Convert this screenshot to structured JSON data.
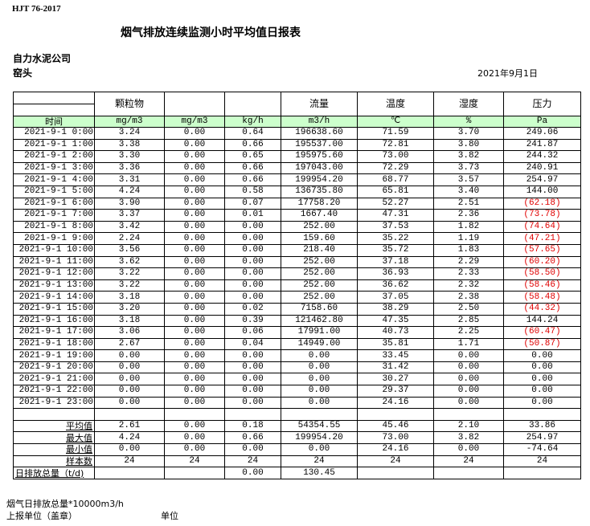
{
  "standard": "HJT  76-2017",
  "title": "烟气排放连续监测小时平均值日报表",
  "company": "自力水泥公司",
  "site": "窑头",
  "date": "2021年9月1日",
  "header": {
    "names": [
      "",
      "颗粒物",
      "",
      "",
      "流量",
      "温度",
      "湿度",
      "压力"
    ],
    "units": [
      "时间",
      "mg/m3",
      "mg/m3",
      "kg/h",
      "m3/h",
      "℃",
      "%",
      "Pa"
    ]
  },
  "rows": [
    [
      "2021-9-1 0:00",
      "3.24",
      "0.00",
      "0.64",
      "196638.60",
      "71.59",
      "3.70",
      "249.06"
    ],
    [
      "2021-9-1 1:00",
      "3.38",
      "0.00",
      "0.66",
      "195537.00",
      "72.81",
      "3.80",
      "241.87"
    ],
    [
      "2021-9-1 2:00",
      "3.30",
      "0.00",
      "0.65",
      "195975.60",
      "73.00",
      "3.82",
      "244.32"
    ],
    [
      "2021-9-1 3:00",
      "3.36",
      "0.00",
      "0.66",
      "197043.00",
      "72.29",
      "3.73",
      "240.91"
    ],
    [
      "2021-9-1 4:00",
      "3.31",
      "0.00",
      "0.66",
      "199954.20",
      "68.77",
      "3.57",
      "254.97"
    ],
    [
      "2021-9-1 5:00",
      "4.24",
      "0.00",
      "0.58",
      "136735.80",
      "65.81",
      "3.40",
      "144.00"
    ],
    [
      "2021-9-1 6:00",
      "3.90",
      "0.00",
      "0.07",
      "17758.20",
      "52.27",
      "2.51",
      "(62.18)"
    ],
    [
      "2021-9-1 7:00",
      "3.37",
      "0.00",
      "0.01",
      "1667.40",
      "47.31",
      "2.36",
      "(73.78)"
    ],
    [
      "2021-9-1 8:00",
      "3.42",
      "0.00",
      "0.00",
      "252.00",
      "37.53",
      "1.82",
      "(74.64)"
    ],
    [
      "2021-9-1 9:00",
      "2.24",
      "0.00",
      "0.00",
      "159.60",
      "35.22",
      "1.19",
      "(47.21)"
    ],
    [
      "2021-9-1 10:00",
      "3.56",
      "0.00",
      "0.00",
      "218.40",
      "35.72",
      "1.83",
      "(57.65)"
    ],
    [
      "2021-9-1 11:00",
      "3.62",
      "0.00",
      "0.00",
      "252.00",
      "37.18",
      "2.29",
      "(60.20)"
    ],
    [
      "2021-9-1 12:00",
      "3.22",
      "0.00",
      "0.00",
      "252.00",
      "36.93",
      "2.33",
      "(58.50)"
    ],
    [
      "2021-9-1 13:00",
      "3.22",
      "0.00",
      "0.00",
      "252.00",
      "36.62",
      "2.32",
      "(58.46)"
    ],
    [
      "2021-9-1 14:00",
      "3.18",
      "0.00",
      "0.00",
      "252.00",
      "37.05",
      "2.38",
      "(58.48)"
    ],
    [
      "2021-9-1 15:00",
      "3.20",
      "0.00",
      "0.02",
      "7158.60",
      "38.29",
      "2.50",
      "(44.32)"
    ],
    [
      "2021-9-1 16:00",
      "3.18",
      "0.00",
      "0.39",
      "121462.80",
      "47.35",
      "2.85",
      "144.24"
    ],
    [
      "2021-9-1 17:00",
      "3.06",
      "0.00",
      "0.06",
      "17991.00",
      "40.73",
      "2.25",
      "(60.47)"
    ],
    [
      "2021-9-1 18:00",
      "2.67",
      "0.00",
      "0.04",
      "14949.00",
      "35.81",
      "1.71",
      "(50.87)"
    ],
    [
      "2021-9-1 19:00",
      "0.00",
      "0.00",
      "0.00",
      "0.00",
      "33.45",
      "0.00",
      "0.00"
    ],
    [
      "2021-9-1 20:00",
      "0.00",
      "0.00",
      "0.00",
      "0.00",
      "31.42",
      "0.00",
      "0.00"
    ],
    [
      "2021-9-1 21:00",
      "0.00",
      "0.00",
      "0.00",
      "0.00",
      "30.27",
      "0.00",
      "0.00"
    ],
    [
      "2021-9-1 22:00",
      "0.00",
      "0.00",
      "0.00",
      "0.00",
      "29.37",
      "0.00",
      "0.00"
    ],
    [
      "2021-9-1 23:00",
      "0.00",
      "0.00",
      "0.00",
      "0.00",
      "24.16",
      "0.00",
      "0.00"
    ]
  ],
  "summary": [
    [
      "平均值",
      "2.61",
      "0.00",
      "0.18",
      "54354.55",
      "45.46",
      "2.10",
      "33.86"
    ],
    [
      "最大值",
      "4.24",
      "0.00",
      "0.66",
      "199954.20",
      "73.00",
      "3.82",
      "254.97"
    ],
    [
      "最小值",
      "0.00",
      "0.00",
      "0.00",
      "0.00",
      "24.16",
      "0.00",
      "-74.64"
    ],
    [
      "样本数",
      "24",
      "24",
      "24",
      "24",
      "24",
      "24",
      "24"
    ]
  ],
  "total": [
    "日排放总量（t/d)",
    "",
    "",
    "0.00",
    "130.45",
    "",
    "",
    ""
  ],
  "negative_color": "#e00000",
  "unit_row_color": "#ccffcc",
  "footer": {
    "note": "烟气日排放总量*10000m3/h",
    "reporter": "上报单位（盖章）",
    "unit": "单位"
  }
}
